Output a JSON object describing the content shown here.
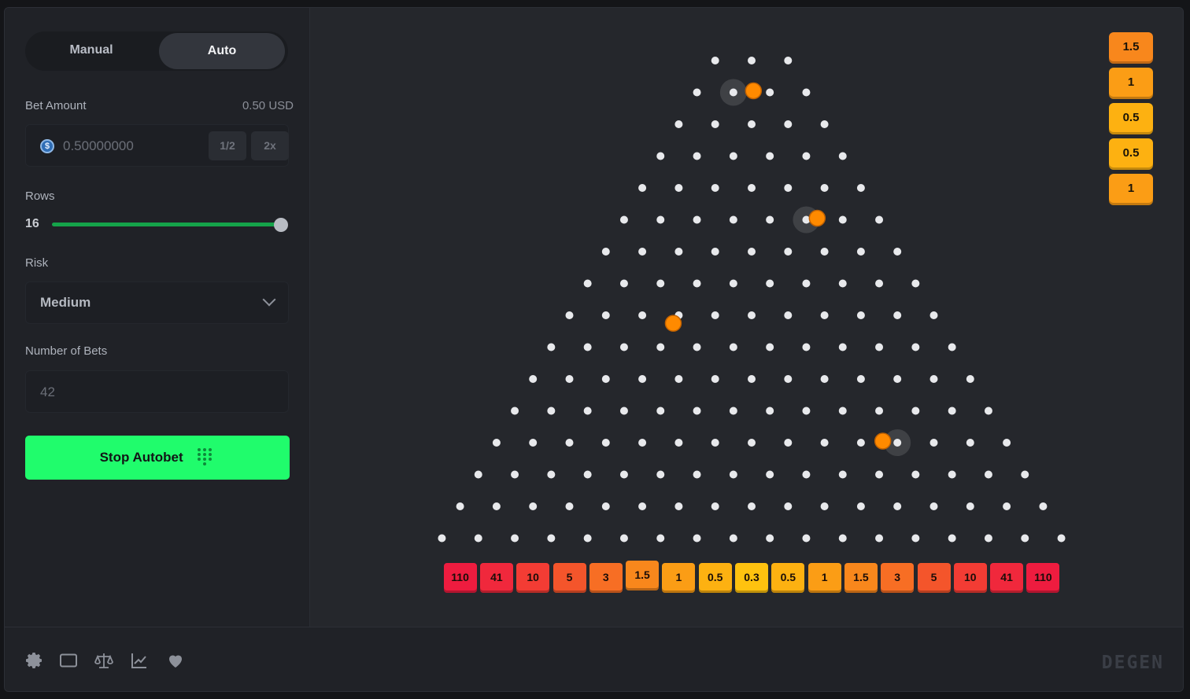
{
  "sidebar": {
    "modes": {
      "manual": "Manual",
      "auto": "Auto"
    },
    "bet_amount": {
      "label": "Bet Amount",
      "usd": "0.50 USD",
      "value": "0.50000000",
      "half": "1/2",
      "double": "2x",
      "currency_icon": "usdc-coin-icon"
    },
    "rows": {
      "label": "Rows",
      "value": "16",
      "fraction": 1.0
    },
    "risk": {
      "label": "Risk",
      "value": "Medium"
    },
    "bets": {
      "label": "Number of Bets",
      "value": "42"
    },
    "stop_button": "Stop Autobet"
  },
  "board": {
    "rows": 16,
    "buckets": [
      "110",
      "41",
      "10",
      "5",
      "3",
      "1.5",
      "1",
      "0.5",
      "0.3",
      "0.5",
      "1",
      "1.5",
      "3",
      "5",
      "10",
      "41",
      "110"
    ],
    "bucket_colors": [
      "#ee1c3f",
      "#f0283c",
      "#f33c34",
      "#f4552b",
      "#f76e24",
      "#f8871c",
      "#fb9d15",
      "#fdb111",
      "#ffc20f",
      "#fdb111",
      "#fb9d15",
      "#f8871c",
      "#f76e24",
      "#f4552b",
      "#f33c34",
      "#f0283c",
      "#ee1c3f"
    ],
    "peg_color": "#e8e9ec",
    "ball_color": "#ff8a00",
    "balls": [
      {
        "row": 1,
        "gap": 1.55,
        "hit_peg": 1
      },
      {
        "row": 5,
        "gap": 5.3,
        "hit_peg": 5
      },
      {
        "row": 8.3,
        "gap": 3.0
      },
      {
        "row": 12,
        "gap": 10.6,
        "hit_peg": 11
      }
    ]
  },
  "history": [
    {
      "value": "1.5",
      "color": "#f8871c"
    },
    {
      "value": "1",
      "color": "#fb9d15"
    },
    {
      "value": "0.5",
      "color": "#fdb111"
    },
    {
      "value": "0.5",
      "color": "#fdb111"
    },
    {
      "value": "1",
      "color": "#fb9d15"
    }
  ],
  "footer": {
    "icons": [
      "settings-icon",
      "theatre-mode-icon",
      "fairness-scale-icon",
      "stats-chart-icon",
      "favorite-heart-icon"
    ],
    "logo": "DEGEN"
  }
}
